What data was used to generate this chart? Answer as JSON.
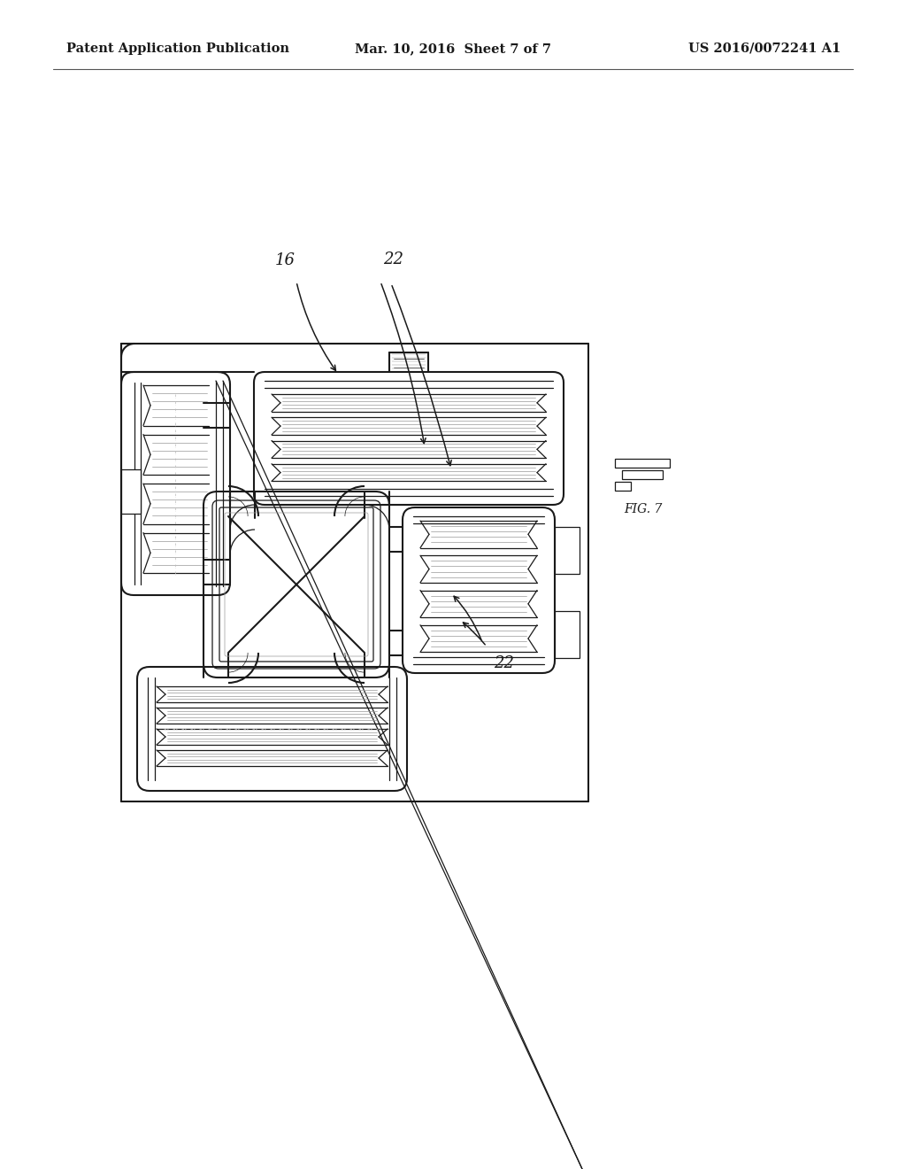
{
  "title_left": "Patent Application Publication",
  "title_mid": "Mar. 10, 2016  Sheet 7 of 7",
  "title_right": "US 2016/0072241 A1",
  "label_16": "16",
  "label_22a": "22",
  "label_22b": "22",
  "bg_color": "#ffffff",
  "lc": "#1a1a1a",
  "gray": "#999999",
  "lightgray": "#cccccc",
  "fig_label": "FIG. 7",
  "title_fontsize": 10.5,
  "label_fontsize": 13
}
